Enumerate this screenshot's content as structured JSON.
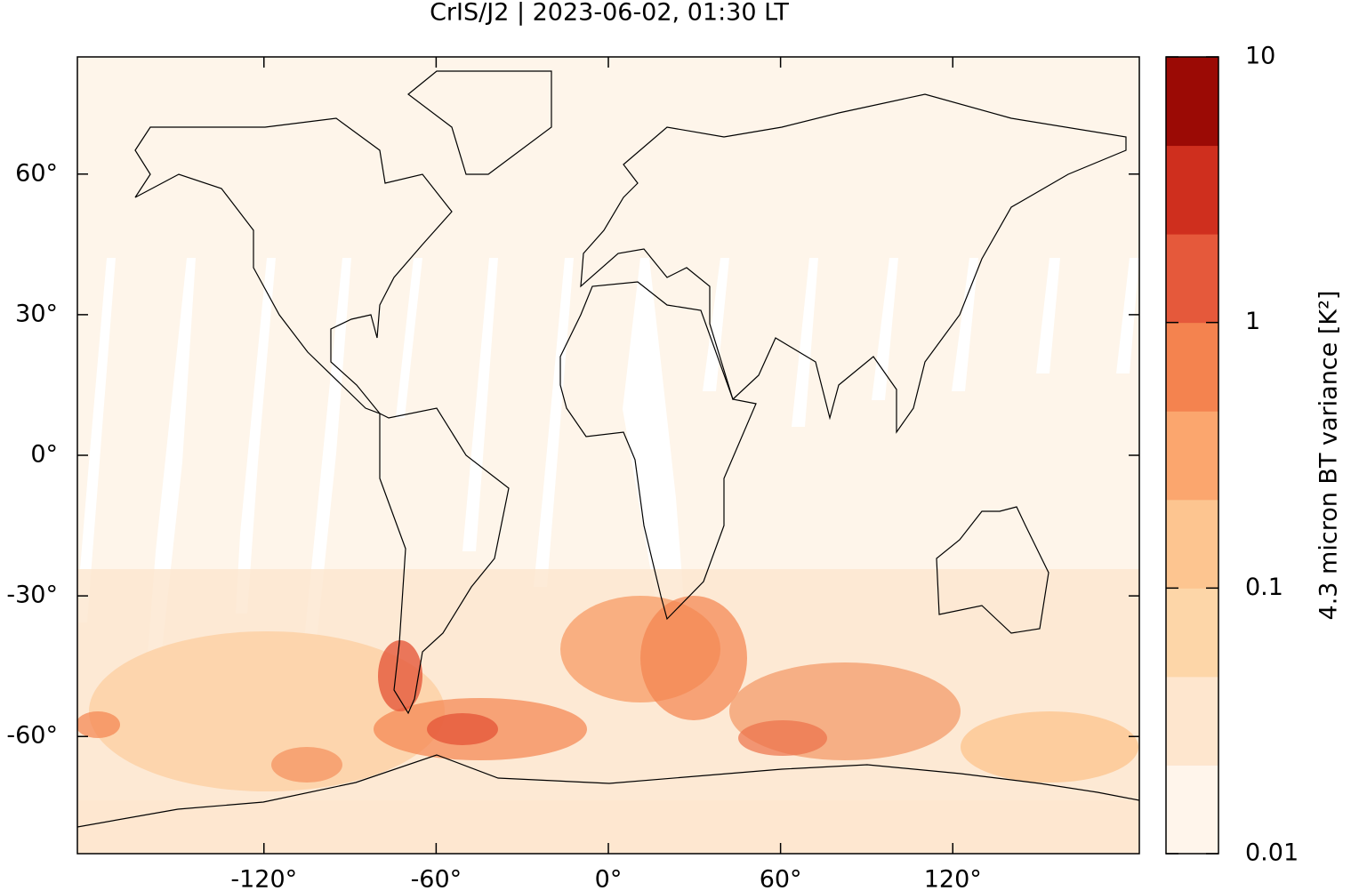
{
  "chart_data": {
    "type": "map",
    "title": "CrIS/J2 | 2023-06-02, 01:30 LT",
    "xlim": [
      -185,
      185
    ],
    "ylim": [
      -85,
      85
    ],
    "xticks": [
      {
        "value": -120,
        "label": "-120°"
      },
      {
        "value": -60,
        "label": "-60°"
      },
      {
        "value": 0,
        "label": "0°"
      },
      {
        "value": 60,
        "label": "60°"
      },
      {
        "value": 120,
        "label": "120°"
      }
    ],
    "yticks": [
      {
        "value": 60,
        "label": "60°"
      },
      {
        "value": 30,
        "label": "30°"
      },
      {
        "value": 0,
        "label": "0°"
      },
      {
        "value": -30,
        "label": "-30°"
      },
      {
        "value": -60,
        "label": "-60°"
      }
    ],
    "colorbar": {
      "label": "4.3 micron BT variance [K²]",
      "log": true,
      "clim": [
        0.01,
        10
      ],
      "ticks": [
        0.01,
        0.1,
        1,
        10
      ],
      "colors": [
        "#fff5eb",
        "#fee6ce",
        "#fdd6a8",
        "#fdc590",
        "#fba66e",
        "#f4834f",
        "#e5593b",
        "#cf2f1e",
        "#9b0a05"
      ]
    }
  }
}
